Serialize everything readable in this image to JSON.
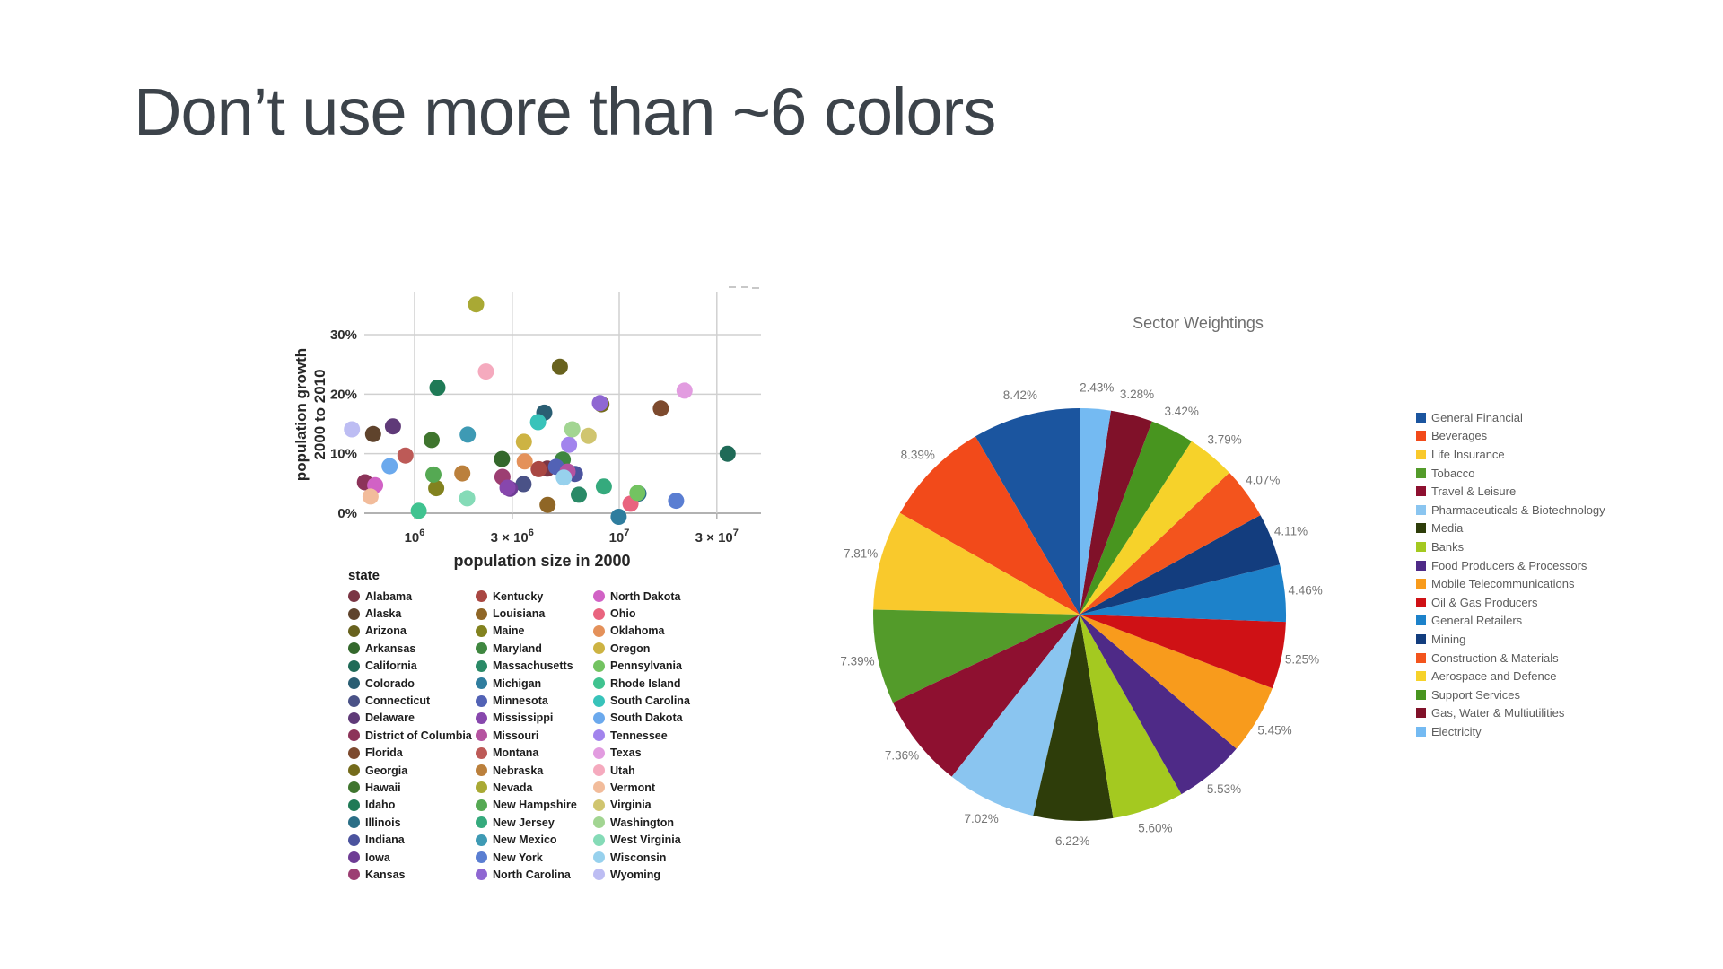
{
  "slide": {
    "title": "Don’t use more than ~6 colors",
    "title_color": "#3c434a",
    "background": "#ffffff"
  },
  "chart_data": [
    {
      "type": "scatter",
      "xlabel": "population size in 2000",
      "ylabel": [
        "population growth",
        "2000 to 2010"
      ],
      "legend_title": "state",
      "x_scale": "log",
      "x_ticks": [
        {
          "label_prefix": "",
          "exponent": "6",
          "value": 1000000
        },
        {
          "label_prefix": "3 × ",
          "exponent": "6",
          "value": 3000000
        },
        {
          "label_prefix": "",
          "exponent": "7",
          "value": 10000000
        },
        {
          "label_prefix": "3 × ",
          "exponent": "7",
          "value": 30000000
        }
      ],
      "y_ticks": [
        {
          "label": "0%",
          "value": 0
        },
        {
          "label": "10%",
          "value": 10
        },
        {
          "label": "20%",
          "value": 20
        },
        {
          "label": "30%",
          "value": 30
        }
      ],
      "points": [
        {
          "state": "Alabama",
          "population_2000_millions": 4.447,
          "growth_pct": 7.5,
          "color": "#7a3544"
        },
        {
          "state": "Alaska",
          "population_2000_millions": 0.627,
          "growth_pct": 13.3,
          "color": "#5f432c"
        },
        {
          "state": "Arizona",
          "population_2000_millions": 5.131,
          "growth_pct": 24.6,
          "color": "#68621e"
        },
        {
          "state": "Arkansas",
          "population_2000_millions": 2.673,
          "growth_pct": 9.1,
          "color": "#34682c"
        },
        {
          "state": "California",
          "population_2000_millions": 33.872,
          "growth_pct": 10.0,
          "color": "#1f6a57"
        },
        {
          "state": "Colorado",
          "population_2000_millions": 4.301,
          "growth_pct": 16.9,
          "color": "#2a5e73"
        },
        {
          "state": "Connecticut",
          "population_2000_millions": 3.406,
          "growth_pct": 4.9,
          "color": "#4a5287"
        },
        {
          "state": "Delaware",
          "population_2000_millions": 0.784,
          "growth_pct": 14.6,
          "color": "#5f3a78"
        },
        {
          "state": "District of Columbia",
          "population_2000_millions": 0.572,
          "growth_pct": 5.2,
          "color": "#8c3359"
        },
        {
          "state": "Florida",
          "population_2000_millions": 15.982,
          "growth_pct": 17.6,
          "color": "#7d4a2e"
        },
        {
          "state": "Georgia",
          "population_2000_millions": 8.186,
          "growth_pct": 18.3,
          "color": "#746b1b"
        },
        {
          "state": "Hawaii",
          "population_2000_millions": 1.212,
          "growth_pct": 12.3,
          "color": "#3f752e"
        },
        {
          "state": "Idaho",
          "population_2000_millions": 1.294,
          "growth_pct": 21.1,
          "color": "#1f7a56"
        },
        {
          "state": "Illinois",
          "population_2000_millions": 12.419,
          "growth_pct": 3.3,
          "color": "#2a6e86"
        },
        {
          "state": "Indiana",
          "population_2000_millions": 6.08,
          "growth_pct": 6.6,
          "color": "#4b539e"
        },
        {
          "state": "Iowa",
          "population_2000_millions": 2.926,
          "growth_pct": 4.1,
          "color": "#6e3c94"
        },
        {
          "state": "Kansas",
          "population_2000_millions": 2.688,
          "growth_pct": 6.1,
          "color": "#9c3e72"
        },
        {
          "state": "Kentucky",
          "population_2000_millions": 4.042,
          "growth_pct": 7.4,
          "color": "#a94742"
        },
        {
          "state": "Louisiana",
          "population_2000_millions": 4.469,
          "growth_pct": 1.4,
          "color": "#8f6626"
        },
        {
          "state": "Maine",
          "population_2000_millions": 1.275,
          "growth_pct": 4.2,
          "color": "#82821f"
        },
        {
          "state": "Maryland",
          "population_2000_millions": 5.296,
          "growth_pct": 9.0,
          "color": "#3f8740"
        },
        {
          "state": "Massachusetts",
          "population_2000_millions": 6.349,
          "growth_pct": 3.1,
          "color": "#2a8a67"
        },
        {
          "state": "Michigan",
          "population_2000_millions": 9.938,
          "growth_pct": -0.6,
          "color": "#2f7d9e"
        },
        {
          "state": "Minnesota",
          "population_2000_millions": 4.919,
          "growth_pct": 7.8,
          "color": "#5262b5"
        },
        {
          "state": "Mississippi",
          "population_2000_millions": 2.845,
          "growth_pct": 4.3,
          "color": "#8747ad"
        },
        {
          "state": "Missouri",
          "population_2000_millions": 5.595,
          "growth_pct": 7.0,
          "color": "#b553a0"
        },
        {
          "state": "Montana",
          "population_2000_millions": 0.902,
          "growth_pct": 9.7,
          "color": "#bd5a57"
        },
        {
          "state": "Nebraska",
          "population_2000_millions": 1.711,
          "growth_pct": 6.7,
          "color": "#bb803c"
        },
        {
          "state": "Nevada",
          "population_2000_millions": 1.998,
          "growth_pct": 35.1,
          "color": "#a9a934"
        },
        {
          "state": "New Hampshire",
          "population_2000_millions": 1.236,
          "growth_pct": 6.5,
          "color": "#55a953"
        },
        {
          "state": "New Jersey",
          "population_2000_millions": 8.414,
          "growth_pct": 4.5,
          "color": "#35aa7d"
        },
        {
          "state": "New Mexico",
          "population_2000_millions": 1.819,
          "growth_pct": 13.2,
          "color": "#3e9ab4"
        },
        {
          "state": "New York",
          "population_2000_millions": 18.976,
          "growth_pct": 2.1,
          "color": "#5a7ed2"
        },
        {
          "state": "North Carolina",
          "population_2000_millions": 8.049,
          "growth_pct": 18.5,
          "color": "#8f67d2"
        },
        {
          "state": "North Dakota",
          "population_2000_millions": 0.642,
          "growth_pct": 4.7,
          "color": "#d162c5"
        },
        {
          "state": "Ohio",
          "population_2000_millions": 11.353,
          "growth_pct": 1.6,
          "color": "#e9647f"
        },
        {
          "state": "Oklahoma",
          "population_2000_millions": 3.451,
          "growth_pct": 8.7,
          "color": "#e4915a"
        },
        {
          "state": "Oregon",
          "population_2000_millions": 3.421,
          "growth_pct": 12.0,
          "color": "#cdb343"
        },
        {
          "state": "Pennsylvania",
          "population_2000_millions": 12.281,
          "growth_pct": 3.4,
          "color": "#73c361"
        },
        {
          "state": "Rhode Island",
          "population_2000_millions": 1.048,
          "growth_pct": 0.4,
          "color": "#40c390"
        },
        {
          "state": "South Carolina",
          "population_2000_millions": 4.012,
          "growth_pct": 15.3,
          "color": "#38c3ba"
        },
        {
          "state": "South Dakota",
          "population_2000_millions": 0.755,
          "growth_pct": 7.9,
          "color": "#6ba9ed"
        },
        {
          "state": "Tennessee",
          "population_2000_millions": 5.689,
          "growth_pct": 11.5,
          "color": "#a284ed"
        },
        {
          "state": "Texas",
          "population_2000_millions": 20.852,
          "growth_pct": 20.6,
          "color": "#e29ce0"
        },
        {
          "state": "Utah",
          "population_2000_millions": 2.233,
          "growth_pct": 23.8,
          "color": "#f5aabe"
        },
        {
          "state": "Vermont",
          "population_2000_millions": 0.609,
          "growth_pct": 2.8,
          "color": "#f2bc9b"
        },
        {
          "state": "Virginia",
          "population_2000_millions": 7.079,
          "growth_pct": 13.0,
          "color": "#d0c56f"
        },
        {
          "state": "Washington",
          "population_2000_millions": 5.894,
          "growth_pct": 14.1,
          "color": "#a2d592"
        },
        {
          "state": "West Virginia",
          "population_2000_millions": 1.808,
          "growth_pct": 2.5,
          "color": "#85dbb7"
        },
        {
          "state": "Wisconsin",
          "population_2000_millions": 5.364,
          "growth_pct": 6.0,
          "color": "#97d1ed"
        },
        {
          "state": "Wyoming",
          "population_2000_millions": 0.494,
          "growth_pct": 14.1,
          "color": "#bdbdf3"
        }
      ]
    },
    {
      "type": "pie",
      "title": "Sector Weightings",
      "start_angle_deg": 90,
      "direction": "counterclockwise",
      "slices": [
        {
          "label": "General Financial",
          "value": 8.42,
          "display": "8.42%",
          "color": "#1b559f"
        },
        {
          "label": "Beverages",
          "value": 8.39,
          "display": "8.39%",
          "color": "#f24a1a"
        },
        {
          "label": "Life Insurance",
          "value": 7.81,
          "display": "7.81%",
          "color": "#f9c92c"
        },
        {
          "label": "Tobacco",
          "value": 7.39,
          "display": "7.39%",
          "color": "#539b2a"
        },
        {
          "label": "Travel & Leisure",
          "value": 7.36,
          "display": "7.36%",
          "color": "#8e1030"
        },
        {
          "label": "Pharmaceuticals & Biotechnology",
          "value": 7.02,
          "display": "7.02%",
          "color": "#8ac5f0"
        },
        {
          "label": "Media",
          "value": 6.22,
          "display": "6.22%",
          "color": "#2e3d0a"
        },
        {
          "label": "Banks",
          "value": 5.6,
          "display": "5.60%",
          "color": "#a4c920"
        },
        {
          "label": "Food Producers & Processors",
          "value": 5.53,
          "display": "5.53%",
          "color": "#4e2a87"
        },
        {
          "label": "Mobile Telecommunications",
          "value": 5.45,
          "display": "5.45%",
          "color": "#f89b1c"
        },
        {
          "label": "Oil & Gas Producers",
          "value": 5.25,
          "display": "5.25%",
          "color": "#cf1115"
        },
        {
          "label": "General Retailers",
          "value": 4.46,
          "display": "4.46%",
          "color": "#1d82ca"
        },
        {
          "label": "Mining",
          "value": 4.11,
          "display": "4.11%",
          "color": "#133d7e"
        },
        {
          "label": "Construction & Materials",
          "value": 4.07,
          "display": "4.07%",
          "color": "#f3541d"
        },
        {
          "label": "Aerospace and Defence",
          "value": 3.79,
          "display": "3.79%",
          "color": "#f6d22a"
        },
        {
          "label": "Support Services",
          "value": 3.42,
          "display": "3.42%",
          "color": "#48951f"
        },
        {
          "label": "Gas, Water & Multiutilities",
          "value": 3.28,
          "display": "3.28%",
          "color": "#801129"
        },
        {
          "label": "Electricity",
          "value": 2.43,
          "display": "2.43%",
          "color": "#74baf2"
        }
      ]
    }
  ]
}
